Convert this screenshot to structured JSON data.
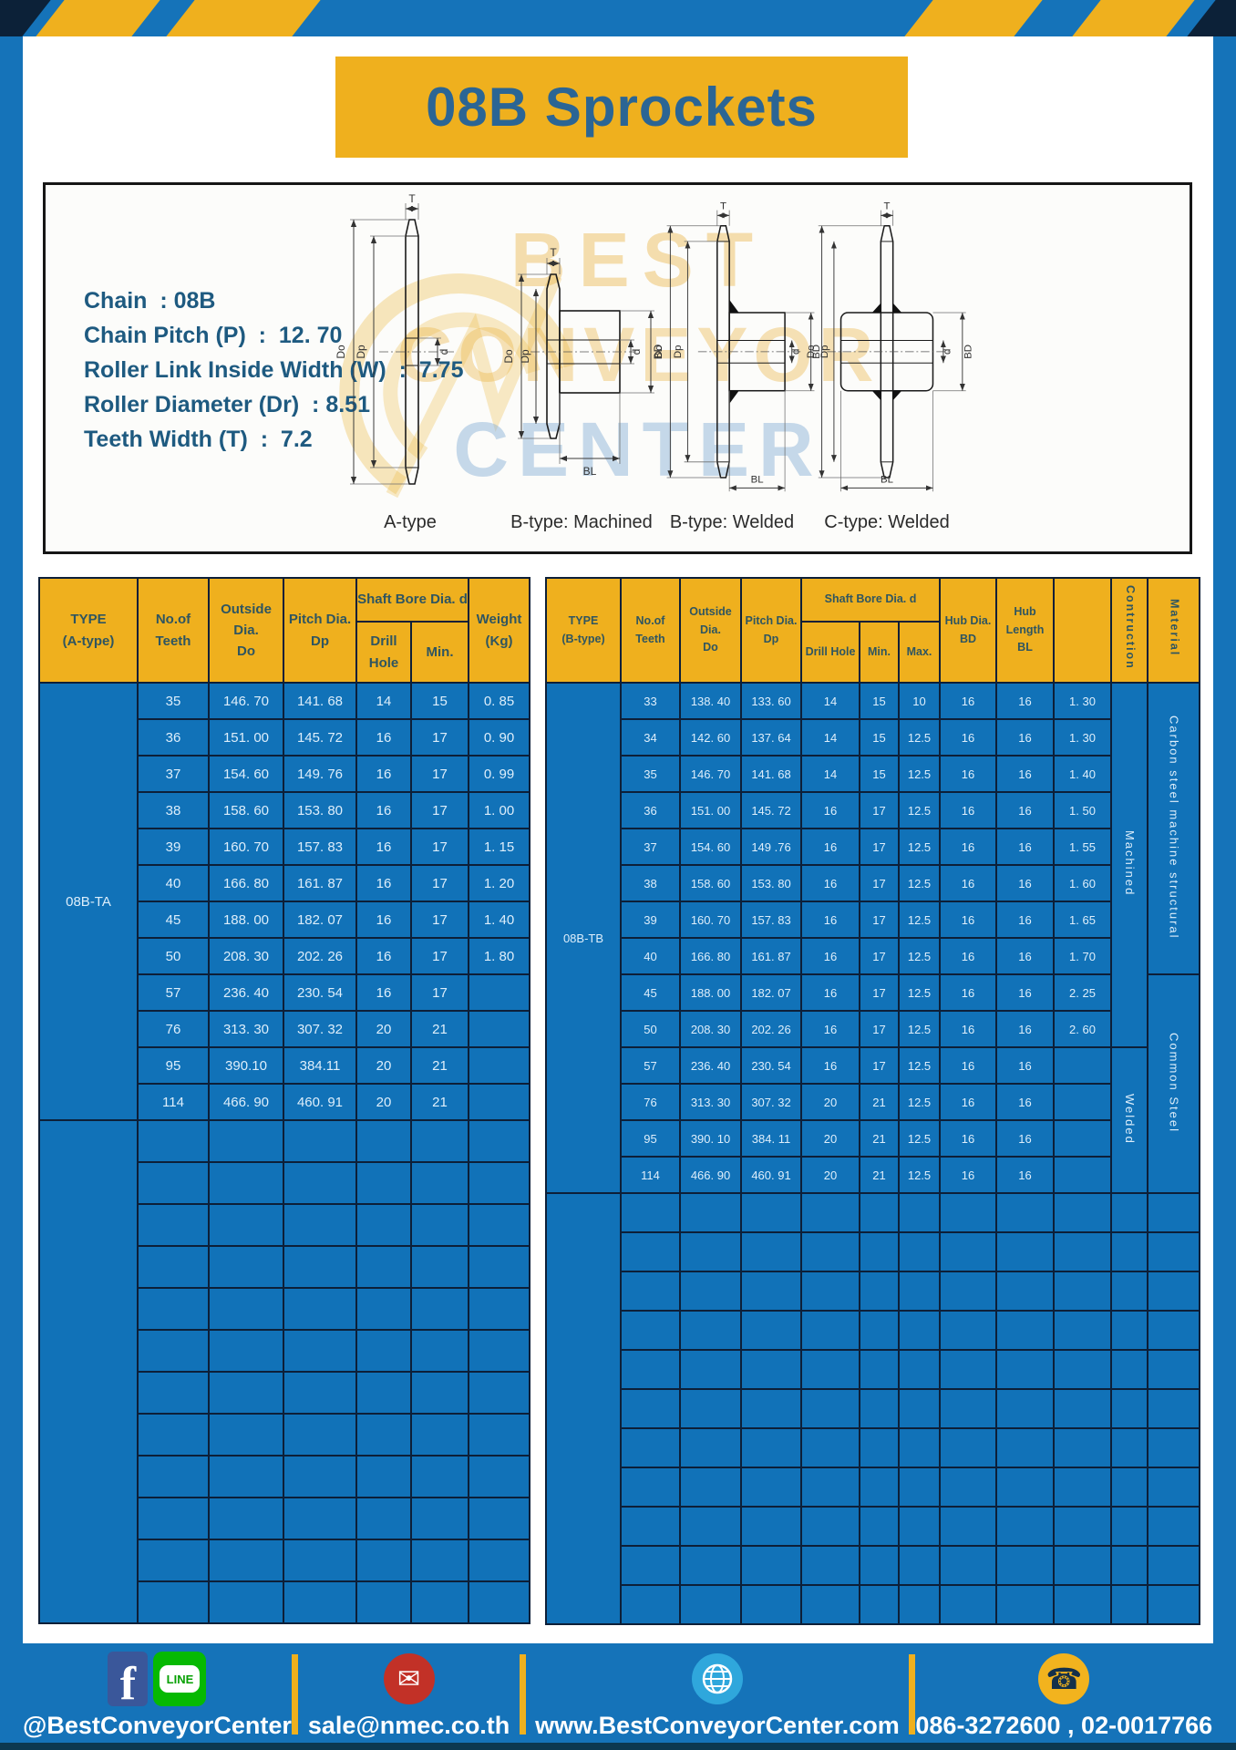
{
  "colors": {
    "page_blue": "#1573B9",
    "cell_blue": "#1172B8",
    "accent_yellow": "#EFB01E",
    "border_navy": "#0D1F38",
    "header_text": "#2F5560",
    "title_text": "#2B6594",
    "spec_text": "#1E5A80",
    "data_text": "#DDEEFB"
  },
  "title": "08B Sprockets",
  "specs": [
    "Chain  : 08B",
    "Chain Pitch (P)  :  12. 70",
    "Roller Link Inside Width (W)  :  7.75",
    "Roller Diameter (Dr)  : 8.51",
    "Teeth Width (T)  :  7.2"
  ],
  "diagram": {
    "watermark": [
      "BEST",
      "CONVEYOR",
      "CENTER"
    ],
    "items": [
      {
        "caption": "A-type",
        "labels": {
          "t": "T",
          "outer": "Do",
          "pitch": "Dp",
          "bore": "d"
        }
      },
      {
        "caption": "B-type: Machined",
        "labels": {
          "t": "T",
          "outer": "Do",
          "pitch": "Dp",
          "bore": "d",
          "hub_dia": "BD",
          "hub_len": "BL"
        }
      },
      {
        "caption": "B-type: Welded",
        "labels": {
          "t": "T",
          "outer": "Do",
          "pitch": "Dp",
          "bore": "d",
          "hub_dia": "BD",
          "hub_len": "BL"
        }
      },
      {
        "caption": "C-type: Welded",
        "labels": {
          "t": "T",
          "outer": "Do",
          "pitch": "Dp",
          "bore": "d",
          "hub_dia": "BD",
          "hub_len": "BL"
        }
      }
    ]
  },
  "table_a": {
    "header": {
      "type": "TYPE\n(A-type)",
      "teeth": "No.of\nTeeth",
      "outside": "Outside\nDia.\nDo",
      "pitch": "Pitch Dia.\nDp",
      "shaft": "Shaft Bore Dia. d",
      "drill": "Drill Hole",
      "min": "Min.",
      "weight": "Weight\n(Kg)"
    },
    "type_label": "08B-TA",
    "rows": [
      [
        "35",
        "146. 70",
        "141. 68",
        "14",
        "15",
        "0. 85"
      ],
      [
        "36",
        "151. 00",
        "145. 72",
        "16",
        "17",
        "0. 90"
      ],
      [
        "37",
        "154. 60",
        "149. 76",
        "16",
        "17",
        "0. 99"
      ],
      [
        "38",
        "158. 60",
        "153. 80",
        "16",
        "17",
        "1. 00"
      ],
      [
        "39",
        "160. 70",
        "157. 83",
        "16",
        "17",
        "1. 15"
      ],
      [
        "40",
        "166. 80",
        "161. 87",
        "16",
        "17",
        "1. 20"
      ],
      [
        "45",
        "188. 00",
        "182. 07",
        "16",
        "17",
        "1. 40"
      ],
      [
        "50",
        "208. 30",
        "202. 26",
        "16",
        "17",
        "1. 80"
      ],
      [
        "57",
        "236. 40",
        "230. 54",
        "16",
        "17",
        ""
      ],
      [
        "76",
        "313. 30",
        "307. 32",
        "20",
        "21",
        ""
      ],
      [
        "95",
        "390.10",
        "384.11",
        "20",
        "21",
        ""
      ],
      [
        "114",
        "466. 90",
        "460. 91",
        "20",
        "21",
        ""
      ]
    ],
    "empty_rows": 12
  },
  "table_b": {
    "header": {
      "type": "TYPE\n(B-type)",
      "teeth": "No.of\nTeeth",
      "outside": "Outside\nDia.\nDo",
      "pitch": "Pitch Dia.\nDp",
      "shaft": "Shaft Bore Dia. d",
      "drill": "Drill Hole",
      "min": "Min.",
      "max": "Max.",
      "hub_dia": "Hub Dia.\nBD",
      "hub_len": "Hub\nLength\nBL",
      "construction": "Contruction",
      "material": "Material"
    },
    "type_label": "08B-TB",
    "rows": [
      [
        "33",
        "138. 40",
        "133. 60",
        "14",
        "15",
        "10",
        "16",
        "16",
        "1. 30"
      ],
      [
        "34",
        "142. 60",
        "137. 64",
        "14",
        "15",
        "12.5",
        "16",
        "16",
        "1. 30"
      ],
      [
        "35",
        "146. 70",
        "141. 68",
        "14",
        "15",
        "12.5",
        "16",
        "16",
        "1. 40"
      ],
      [
        "36",
        "151. 00",
        "145. 72",
        "16",
        "17",
        "12.5",
        "16",
        "16",
        "1. 50"
      ],
      [
        "37",
        "154. 60",
        "149 .76",
        "16",
        "17",
        "12.5",
        "16",
        "16",
        "1. 55"
      ],
      [
        "38",
        "158. 60",
        "153. 80",
        "16",
        "17",
        "12.5",
        "16",
        "16",
        "1. 60"
      ],
      [
        "39",
        "160. 70",
        "157. 83",
        "16",
        "17",
        "12.5",
        "16",
        "16",
        "1. 65"
      ],
      [
        "40",
        "166. 80",
        "161. 87",
        "16",
        "17",
        "12.5",
        "16",
        "16",
        "1. 70"
      ],
      [
        "45",
        "188. 00",
        "182. 07",
        "16",
        "17",
        "12.5",
        "16",
        "16",
        "2. 25"
      ],
      [
        "50",
        "208. 30",
        "202. 26",
        "16",
        "17",
        "12.5",
        "16",
        "16",
        "2. 60"
      ],
      [
        "57",
        "236. 40",
        "230. 54",
        "16",
        "17",
        "12.5",
        "16",
        "16",
        ""
      ],
      [
        "76",
        "313. 30",
        "307. 32",
        "20",
        "21",
        "12.5",
        "16",
        "16",
        ""
      ],
      [
        "95",
        "390. 10",
        "384. 11",
        "20",
        "21",
        "12.5",
        "16",
        "16",
        ""
      ],
      [
        "114",
        "466. 90",
        "460. 91",
        "20",
        "21",
        "12.5",
        "16",
        "16",
        ""
      ]
    ],
    "construction_spans": [
      {
        "label": "Machined",
        "rows": 10
      },
      {
        "label": "Welded",
        "rows": 4
      }
    ],
    "material_spans": [
      {
        "label": "Carbon steel  machine structural",
        "rows": 8
      },
      {
        "label": "Common  Steel",
        "rows": 6
      }
    ],
    "empty_rows": 11
  },
  "footer": {
    "social_text": "@BestConveyorCenter",
    "line_label": "LINE",
    "facebook_letter": "f",
    "email": "sale@nmec.co.th",
    "website": "www.BestConveyorCenter.com",
    "phone": "086-3272600 , 02-0017766"
  }
}
